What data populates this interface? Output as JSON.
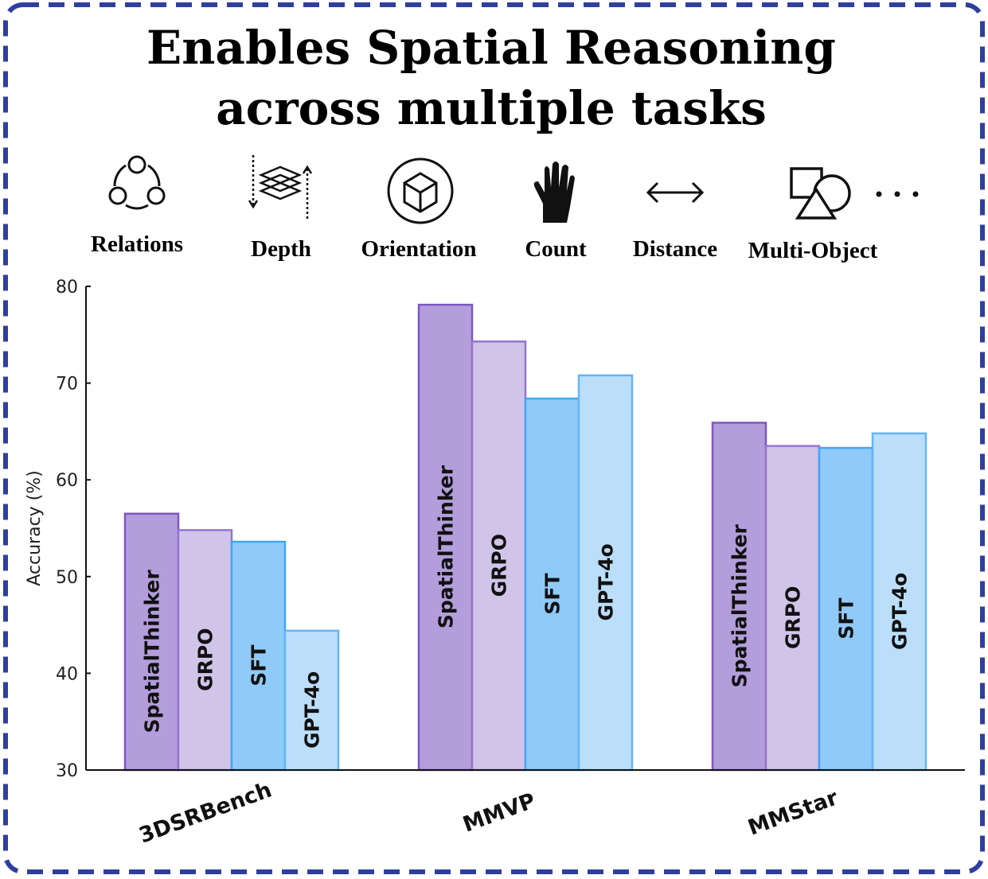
{
  "title": {
    "line1": "Enables Spatial Reasoning",
    "line2": "across multiple tasks"
  },
  "border_color": "#2e3f9e",
  "icons": [
    {
      "label": "Relations",
      "icon": "relations-network-icon"
    },
    {
      "label": "Depth",
      "icon": "depth-layers-icon"
    },
    {
      "label": "Orientation",
      "icon": "orientation-cube-icon"
    },
    {
      "label": "Count",
      "icon": "hand-count-icon"
    },
    {
      "label": "Distance",
      "icon": "double-arrow-icon"
    },
    {
      "label": "Multi-Object",
      "icon": "shapes-icon"
    }
  ],
  "ellipsis": "...",
  "chart_data": {
    "type": "bar",
    "categories": [
      "3DSRBench",
      "MMVP",
      "MMStar"
    ],
    "series": [
      {
        "name": "SpatialThinker",
        "values": [
          56.5,
          78.1,
          65.9
        ],
        "fill": "#b39ddb",
        "stroke": "#7e57c2"
      },
      {
        "name": "GRPO",
        "values": [
          54.8,
          74.3,
          63.5
        ],
        "fill": "#d1c4e9",
        "stroke": "#9575cd"
      },
      {
        "name": "SFT",
        "values": [
          53.6,
          68.4,
          63.3
        ],
        "fill": "#90caf9",
        "stroke": "#42a5f5"
      },
      {
        "name": "GPT-4o",
        "values": [
          44.4,
          70.8,
          64.8
        ],
        "fill": "#bbdefb",
        "stroke": "#64b5f6"
      }
    ],
    "ylabel": "Accuracy (%)",
    "xlabel": "",
    "ylim": [
      30,
      80
    ],
    "yticks": [
      "30",
      "40",
      "50",
      "60",
      "70",
      "80"
    ],
    "grid": false,
    "legend": "none (series names printed inside bars)"
  }
}
